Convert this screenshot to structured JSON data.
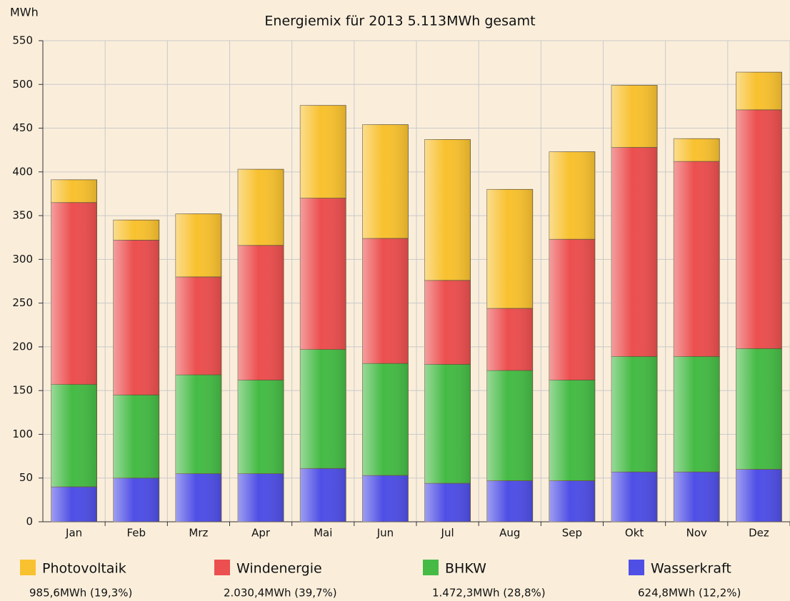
{
  "chart_data": {
    "type": "stacked_bar",
    "title": "Energiemix für 2013   5.113MWh gesamt",
    "y_label": "MWh",
    "categories": [
      "Jan",
      "Feb",
      "Mrz",
      "Apr",
      "Mai",
      "Jun",
      "Jul",
      "Aug",
      "Sep",
      "Okt",
      "Nov",
      "Dez"
    ],
    "series": [
      {
        "name": "Photovoltaik",
        "summary": "985,6MWh (19,3%)",
        "color": "#f8c12f",
        "values": [
          26,
          23,
          72,
          87,
          106,
          130,
          161,
          136,
          100,
          71,
          26,
          43
        ]
      },
      {
        "name": "Windenergie",
        "summary": "2.030,4MWh (39,7%)",
        "color": "#ec4f4f",
        "values": [
          208,
          177,
          112,
          154,
          173,
          143,
          96,
          71,
          161,
          239,
          223,
          273
        ]
      },
      {
        "name": "BHKW",
        "summary": "1.472,3MWh (28,8%)",
        "color": "#45bb45",
        "values": [
          117,
          95,
          113,
          107,
          136,
          128,
          136,
          126,
          115,
          132,
          132,
          138
        ]
      },
      {
        "name": "Wasserkraft",
        "summary": "624,8MWh (12,2%)",
        "color": "#4f4fe6",
        "values": [
          40,
          50,
          55,
          55,
          61,
          53,
          44,
          47,
          47,
          57,
          57,
          60
        ]
      }
    ],
    "ylim": [
      0,
      550
    ],
    "yticks": [
      0,
      50,
      100,
      150,
      200,
      250,
      300,
      350,
      400,
      450,
      500,
      550
    ],
    "grid": true
  }
}
